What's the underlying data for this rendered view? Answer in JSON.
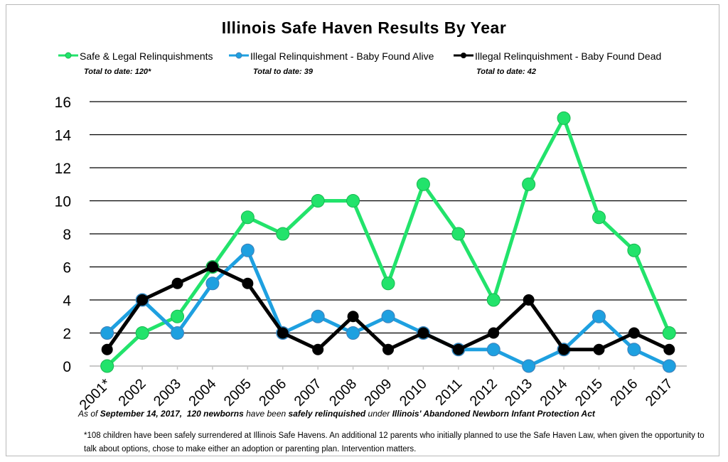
{
  "chart_data": {
    "type": "line",
    "title": "Illinois Safe Haven Results By Year",
    "categories": [
      "2001*",
      "2002",
      "2003",
      "2004",
      "2005",
      "2006",
      "2007",
      "2008",
      "2009",
      "2010",
      "2011",
      "2012",
      "2013",
      "2014",
      "2015",
      "2016",
      "2017"
    ],
    "ylim": [
      0,
      16
    ],
    "yticks": [
      0,
      2,
      4,
      6,
      8,
      10,
      12,
      14,
      16
    ],
    "grid": true,
    "legend_position": "top",
    "series": [
      {
        "name": "Safe & Legal Relinquishments",
        "total": "Total to date: 120*",
        "color": "#22e36b",
        "values": [
          0,
          2,
          3,
          6,
          9,
          8,
          10,
          10,
          5,
          11,
          8,
          4,
          11,
          15,
          9,
          7,
          2
        ]
      },
      {
        "name": "Illegal Relinquishment - Baby Found Alive",
        "total": "Total to date: 39",
        "color": "#1ea0e0",
        "values": [
          2,
          4,
          2,
          5,
          7,
          2,
          3,
          2,
          3,
          2,
          1,
          1,
          0,
          1,
          3,
          1,
          0
        ]
      },
      {
        "name": "Illegal Relinquishment - Baby Found Dead",
        "total": "Total to date: 42",
        "color": "#000000",
        "values": [
          1,
          4,
          5,
          6,
          5,
          2,
          1,
          3,
          1,
          2,
          1,
          2,
          4,
          1,
          1,
          2,
          1
        ]
      }
    ]
  },
  "caption": {
    "prefix": "As of ",
    "date": "September 14, 2017,",
    "count": "120 newborns",
    "mid1": " have been ",
    "safely": "safely relinquished",
    "mid2": " under ",
    "act": "Illinois' Abandoned Newborn Infant Protection Act"
  },
  "footnote": "*108 children have been safely surrendered at Illinois Safe Havens.  An additional 12 parents who initially planned to use the Safe Haven Law, when given the opportunity to talk about options, chose to make either an adoption or parenting plan.   Intervention matters."
}
